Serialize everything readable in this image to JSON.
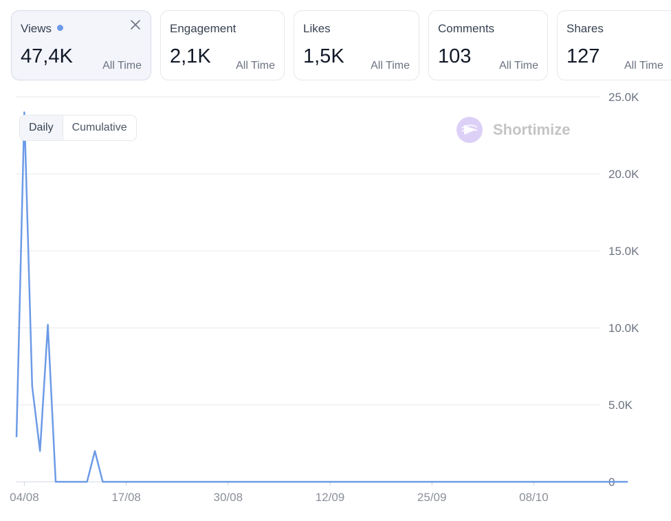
{
  "cards": [
    {
      "label": "Views",
      "value": "47,4K",
      "period": "All Time",
      "active": true
    },
    {
      "label": "Engagement",
      "value": "2,1K",
      "period": "All Time",
      "active": false
    },
    {
      "label": "Likes",
      "value": "1,5K",
      "period": "All Time",
      "active": false
    },
    {
      "label": "Comments",
      "value": "103",
      "period": "All Time",
      "active": false
    },
    {
      "label": "Shares",
      "value": "127",
      "period": "All Time",
      "active": false
    }
  ],
  "toggle": {
    "daily": "Daily",
    "cumulative": "Cumulative",
    "selected": "Daily"
  },
  "watermark": {
    "text": "Shortimize"
  },
  "colors": {
    "line": "#6c9ae6",
    "grid": "#e5e7eb",
    "active_card_bg": "#f3f5fa",
    "watermark": "#c4c4c4",
    "logo": "#d9ccf5"
  },
  "chart_data": {
    "type": "line",
    "x_start": "2024-08-04",
    "x": [
      "03/08",
      "04/08",
      "05/08",
      "06/08",
      "07/08",
      "08/08",
      "09/08",
      "10/08",
      "11/08",
      "12/08",
      "13/08",
      "14/08",
      "15/08",
      "16/08",
      "17/08",
      "18/08",
      "19/08",
      "20/08",
      "21/08",
      "22/08",
      "23/08",
      "24/08",
      "25/08",
      "26/08",
      "27/08",
      "28/08",
      "29/08",
      "30/08",
      "31/08",
      "01/09",
      "02/09",
      "03/09",
      "04/09",
      "05/09",
      "06/09",
      "07/09",
      "08/09",
      "09/09",
      "10/09",
      "11/09",
      "12/09",
      "13/09",
      "14/09",
      "15/09",
      "16/09",
      "17/09",
      "18/09",
      "19/09",
      "20/09",
      "21/09",
      "22/09",
      "23/09",
      "24/09",
      "25/09",
      "26/09",
      "27/09",
      "28/09",
      "29/09",
      "30/09",
      "01/10",
      "02/10",
      "03/10",
      "04/10",
      "05/10",
      "06/10",
      "07/10",
      "08/10",
      "09/10",
      "10/10",
      "11/10",
      "12/10",
      "13/10",
      "14/10",
      "15/10",
      "16/10",
      "17/10",
      "18/10",
      "19/10",
      "20/10"
    ],
    "series": [
      {
        "values": [
          2900,
          24000,
          6200,
          2000,
          10200,
          0,
          0,
          0,
          0,
          0,
          2000,
          0,
          0,
          0,
          0,
          0,
          0,
          0,
          0,
          0,
          0,
          0,
          0,
          0,
          0,
          0,
          0,
          0,
          0,
          0,
          0,
          0,
          0,
          0,
          0,
          0,
          0,
          0,
          0,
          0,
          0,
          0,
          0,
          0,
          0,
          0,
          0,
          0,
          0,
          0,
          0,
          0,
          0,
          0,
          0,
          0,
          0,
          0,
          0,
          0,
          0,
          0,
          0,
          0,
          0,
          0,
          0,
          0,
          0,
          0,
          0,
          0,
          0,
          0,
          0,
          0,
          0,
          0,
          0
        ]
      }
    ],
    "y_ticks": [
      "0",
      "5.0K",
      "10.0K",
      "15.0K",
      "20.0K",
      "25.0K"
    ],
    "x_ticks": [
      "04/08",
      "17/08",
      "30/08",
      "12/09",
      "25/09",
      "08/10"
    ],
    "ylim": [
      0,
      25000
    ],
    "grid": true,
    "y_axis_position": "right"
  }
}
